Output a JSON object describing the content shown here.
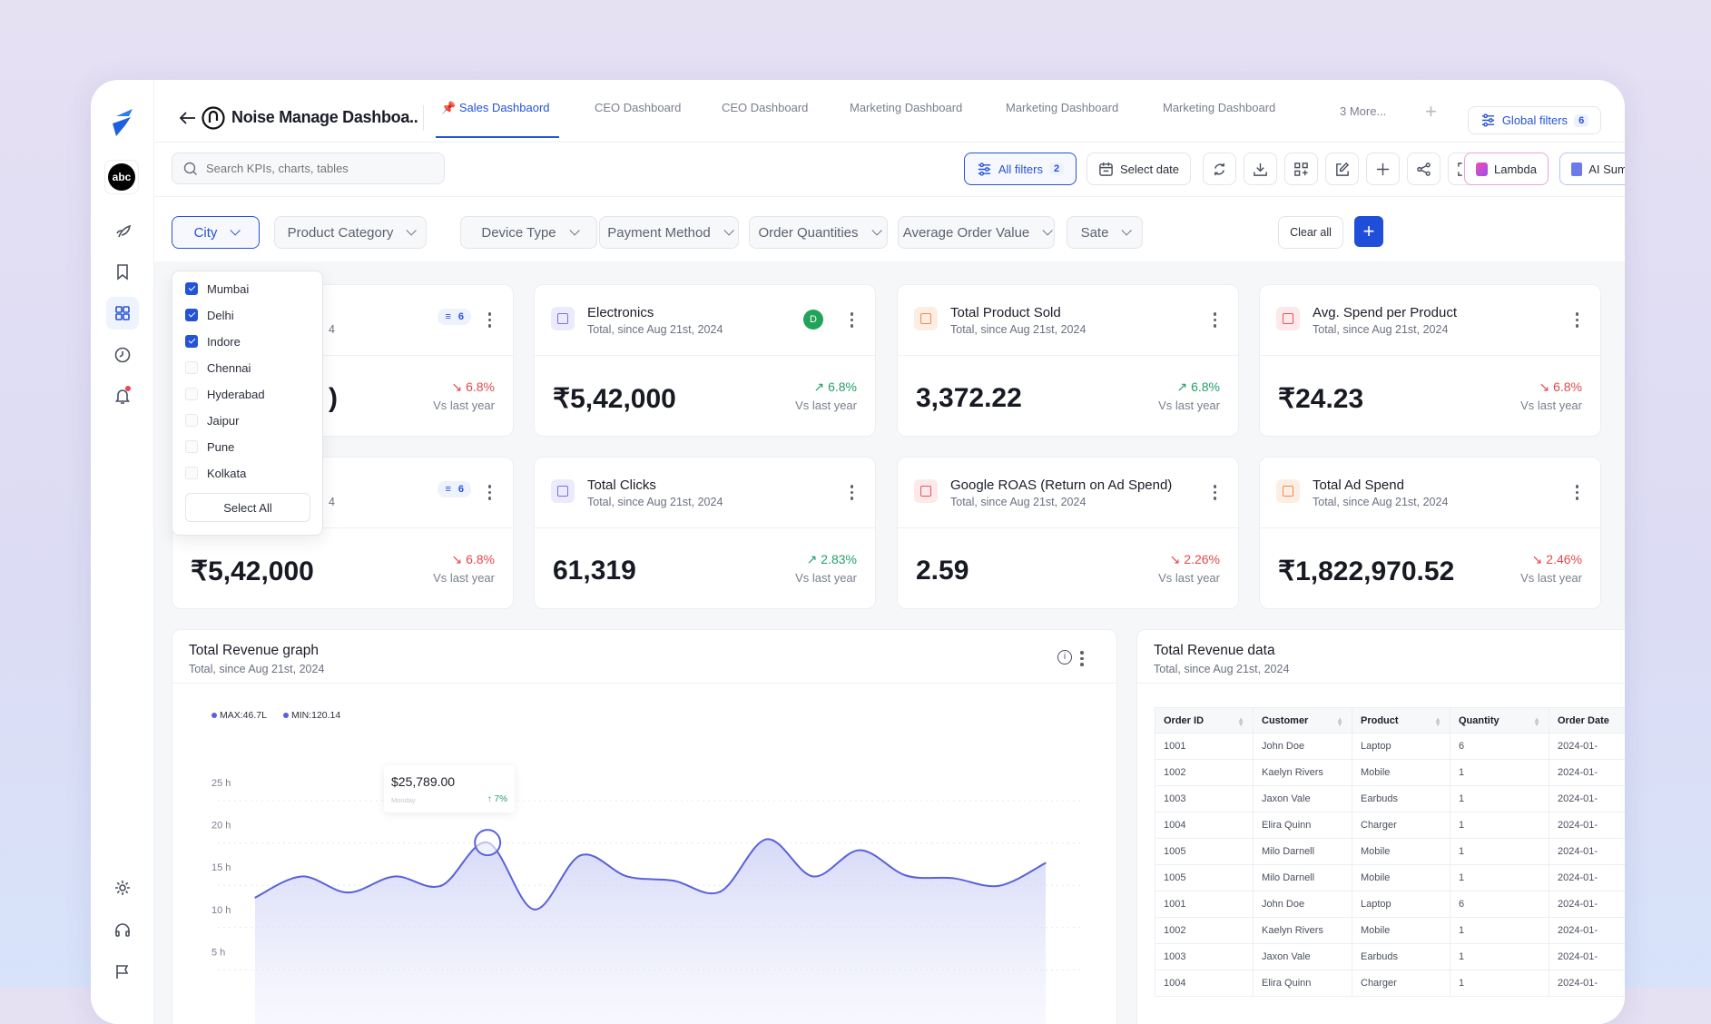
{
  "header": {
    "title": "Noise Manage Dashboa..",
    "more_tabs": "3 More...",
    "global_filters": {
      "label": "Global filters",
      "count": "6"
    }
  },
  "tabs": [
    {
      "label": "Sales Dashbaord",
      "active": true
    },
    {
      "label": "CEO Dashboard"
    },
    {
      "label": "CEO Dashboard"
    },
    {
      "label": "Marketing Dashboard"
    },
    {
      "label": "Marketing Dashboard"
    },
    {
      "label": "Marketing Dashboard"
    }
  ],
  "sidebar": {
    "avatar": "abc",
    "items": [
      "spark-icon",
      "bookmark-icon",
      "grid-icon",
      "clock-icon",
      "bell-icon"
    ],
    "active": "grid-icon",
    "bottom": [
      "gear-icon",
      "headset-icon",
      "flag-icon"
    ]
  },
  "toolbar": {
    "search_placeholder": "Search KPIs, charts, tables",
    "all_filters": "All filters",
    "all_filters_count": "2",
    "select_date": "Select date",
    "icons": [
      "refresh-icon",
      "download-icon",
      "add-widget-icon",
      "edit-icon",
      "plus-icon",
      "share-icon",
      "fullscreen-icon"
    ],
    "lambda": "Lambda",
    "ai_summary": "AI Summary"
  },
  "filters": [
    "City",
    "Product Category",
    "Device Type",
    "Payment Method",
    "Order Quantities",
    "Average Order Value",
    "Sate"
  ],
  "clear_all": "Clear all",
  "city_dropdown": {
    "options": [
      {
        "label": "Mumbai",
        "checked": true
      },
      {
        "label": "Delhi",
        "checked": true
      },
      {
        "label": "Indore",
        "checked": true
      },
      {
        "label": "Chennai",
        "checked": false
      },
      {
        "label": "Hyderabad",
        "checked": false
      },
      {
        "label": "Jaipur",
        "checked": false
      },
      {
        "label": "Pune",
        "checked": false
      },
      {
        "label": "Kolkata",
        "checked": false
      }
    ],
    "select_all": "Select All"
  },
  "kpis": [
    {
      "title": "",
      "subtitle": "4",
      "value": ")",
      "change": "6.8%",
      "trend": "down",
      "vs": "Vs last year",
      "filter_count": "6",
      "tile": ""
    },
    {
      "title": "Electronics",
      "subtitle": "Total, since Aug 21st, 2024",
      "value": "₹5,42,000",
      "change": "6.8%",
      "trend": "up",
      "vs": "Vs last year",
      "avatar": "D",
      "tile": "purple"
    },
    {
      "title": "Total Product Sold",
      "subtitle": "Total, since Aug 21st, 2024",
      "value": "3,372.22",
      "change": "6.8%",
      "trend": "up",
      "vs": "Vs last year",
      "tile": "orange"
    },
    {
      "title": "Avg. Spend per Product",
      "subtitle": "Total, since Aug 21st, 2024",
      "value": "₹24.23",
      "change": "6.8%",
      "trend": "down",
      "vs": "Vs last year",
      "tile": "red"
    },
    {
      "title": "",
      "subtitle": "4",
      "value": "₹5,42,000",
      "change": "6.8%",
      "trend": "down",
      "vs": "Vs last year",
      "filter_count": "6",
      "tile": ""
    },
    {
      "title": "Total Clicks",
      "subtitle": "Total, since Aug 21st, 2024",
      "value": "61,319",
      "change": "2.83%",
      "trend": "up",
      "vs": "Vs last year",
      "tile": "purple"
    },
    {
      "title": "Google ROAS (Return on Ad Spend)",
      "subtitle": "Total, since Aug 21st, 2024",
      "value": "2.59",
      "change": "2.26%",
      "trend": "down",
      "vs": "Vs last year",
      "tile": "red"
    },
    {
      "title": "Total Ad Spend",
      "subtitle": "Total, since Aug 21st, 2024",
      "value": "₹1,822,970.52",
      "change": "2.46%",
      "trend": "down",
      "vs": "Vs last year",
      "tile": "orange"
    }
  ],
  "revenue_graph": {
    "title": "Total Revenue  graph",
    "subtitle": "Total, since Aug 21st, 2024",
    "legend": [
      "MAX:46.7L",
      "MIN:120.14"
    ],
    "tooltip": {
      "value": "$25,789.00",
      "day": "Monday",
      "change": "7%"
    }
  },
  "chart_data": {
    "type": "area",
    "yticks": [
      "25 h",
      "20 h",
      "15 h",
      "10 h",
      "5 h"
    ],
    "ylim": [
      0,
      25
    ],
    "grid": true,
    "values": [
      11.4,
      13.9,
      12.0,
      13.9,
      12.8,
      17.9,
      10.0,
      16.4,
      13.9,
      13.4,
      12.1,
      18.3,
      13.9,
      17.0,
      14.0,
      13.7,
      12.8,
      15.5
    ],
    "highlight_index": 5,
    "color": "#5a62d8"
  },
  "revenue_table": {
    "title": "Total Revenue data",
    "subtitle": "Total, since Aug 21st, 2024",
    "columns": [
      "Order ID",
      "Customer",
      "Product",
      "Quantity",
      "Order Date"
    ],
    "rows": [
      [
        "1001",
        "John Doe",
        "Laptop",
        "6",
        "2024-01-"
      ],
      [
        "1002",
        "Kaelyn Rivers",
        "Mobile",
        "1",
        "2024-01-"
      ],
      [
        "1003",
        "Jaxon Vale",
        "Earbuds",
        "1",
        "2024-01-"
      ],
      [
        "1004",
        "Elira Quinn",
        "Charger",
        "1",
        "2024-01-"
      ],
      [
        "1005",
        "Milo Darnell",
        "Mobile",
        "1",
        "2024-01-"
      ],
      [
        "1005",
        "Milo Darnell",
        "Mobile",
        "1",
        "2024-01-"
      ],
      [
        "1001",
        "John Doe",
        "Laptop",
        "6",
        "2024-01-"
      ],
      [
        "1002",
        "Kaelyn Rivers",
        "Mobile",
        "1",
        "2024-01-"
      ],
      [
        "1003",
        "Jaxon Vale",
        "Earbuds",
        "1",
        "2024-01-"
      ],
      [
        "1004",
        "Elira Quinn",
        "Charger",
        "1",
        "2024-01-"
      ]
    ]
  },
  "colors": {
    "accent": "#2453d6",
    "up": "#22a06b",
    "down": "#e5484d",
    "line": "#5a62d8"
  }
}
